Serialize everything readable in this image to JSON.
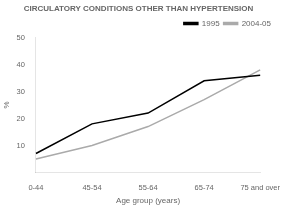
{
  "chart_data": {
    "type": "line",
    "title": "CIRCULATORY CONDITIONS OTHER THAN HYPERTENSION",
    "categories": [
      "0-44",
      "45-54",
      "55-64",
      "65-74",
      "75 and over"
    ],
    "series": [
      {
        "name": "1995",
        "color": "#000000",
        "values": [
          7,
          18,
          22,
          34,
          36
        ]
      },
      {
        "name": "2004-05",
        "color": "#aaaaaa",
        "values": [
          5,
          10,
          17,
          27,
          38
        ]
      }
    ],
    "xlabel": "Age group (years)",
    "ylabel": "%",
    "ylim": [
      0,
      50
    ],
    "yticks": [
      10,
      20,
      30,
      40,
      50
    ],
    "grid": false,
    "legend": "upper right",
    "marker": "none",
    "line_style": "solid"
  }
}
